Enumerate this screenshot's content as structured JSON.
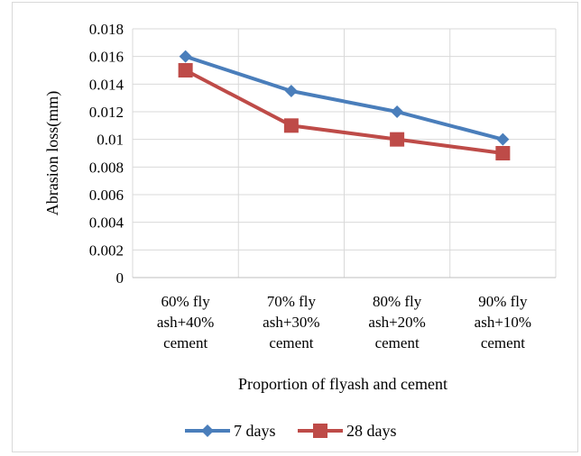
{
  "chart_data": {
    "type": "line",
    "title": "",
    "xlabel": "Proportion of flyash and cement",
    "ylabel": "Abrasion loss(mm)",
    "ylim": [
      0,
      0.018
    ],
    "yticks": [
      "0",
      "0.002",
      "0.004",
      "0.006",
      "0.008",
      "0.01",
      "0.012",
      "0.014",
      "0.016",
      "0.018"
    ],
    "grid": true,
    "legend_position": "bottom",
    "categories": [
      [
        "60% fly",
        "ash+40%",
        "cement"
      ],
      [
        "70% fly",
        "ash+30%",
        "cement"
      ],
      [
        "80% fly",
        "ash+20%",
        "cement"
      ],
      [
        "90% fly",
        "ash+10%",
        "cement"
      ]
    ],
    "series": [
      {
        "name": "7 days",
        "values": [
          0.016,
          0.0135,
          0.012,
          0.01
        ],
        "color": "#4a7ebb",
        "marker": "diamond"
      },
      {
        "name": "28 days",
        "values": [
          0.015,
          0.011,
          0.01,
          0.009
        ],
        "color": "#be4b48",
        "marker": "square"
      }
    ]
  }
}
